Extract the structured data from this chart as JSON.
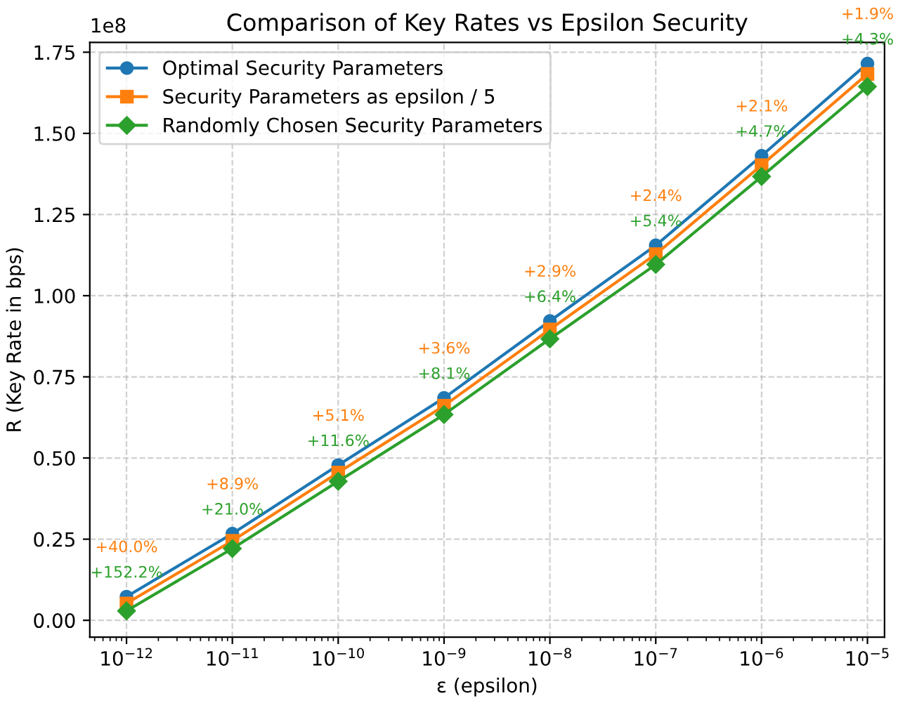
{
  "chart_data": {
    "type": "line",
    "title": "Comparison of Key Rates vs Epsilon Security",
    "xlabel": "ε (epsilon)",
    "ylabel": "R (Key Rate in bps)",
    "log": "x",
    "x": [
      1e-12,
      1e-11,
      1e-10,
      1e-09,
      1e-08,
      1e-07,
      1e-06,
      1e-05
    ],
    "series": [
      {
        "name": "Optimal Security Parameters",
        "color": "#1f77b4",
        "marker": "circle",
        "values": [
          0.073,
          0.267,
          0.478,
          0.685,
          0.922,
          1.155,
          1.431,
          1.715
        ]
      },
      {
        "name": "Security Parameters as epsilon / 5",
        "color": "#ff7f0e",
        "marker": "square",
        "values": [
          0.052,
          0.245,
          0.455,
          0.661,
          0.896,
          1.128,
          1.402,
          1.683
        ]
      },
      {
        "name": "Randomly Chosen Security Parameters",
        "color": "#2ca02c",
        "marker": "diamond",
        "values": [
          0.029,
          0.221,
          0.428,
          0.634,
          0.867,
          1.096,
          1.367,
          1.644
        ]
      }
    ],
    "xlim": [
      4.5e-13,
      1.45e-05
    ],
    "xticks": [
      {
        "value": 1e-12,
        "label": "10$^{−12}$"
      },
      {
        "value": 1e-11,
        "label": "10$^{−11}$"
      },
      {
        "value": 1e-10,
        "label": "10$^{−10}$"
      },
      {
        "value": 1e-09,
        "label": "10$^{−9}$"
      },
      {
        "value": 1e-08,
        "label": "10$^{−8}$"
      },
      {
        "value": 1e-07,
        "label": "10$^{−7}$"
      },
      {
        "value": 1e-06,
        "label": "10$^{−6}$"
      },
      {
        "value": 1e-05,
        "label": "10$^{−5}$"
      }
    ],
    "ylim": [
      -0.052,
      1.78
    ],
    "yticks": [
      {
        "value": 0,
        "label": "0.00"
      },
      {
        "value": 0.25,
        "label": "0.25"
      },
      {
        "value": 0.5,
        "label": "0.50"
      },
      {
        "value": 0.75,
        "label": "0.75"
      },
      {
        "value": 1,
        "label": "1.00"
      },
      {
        "value": 1.25,
        "label": "1.25"
      },
      {
        "value": 1.5,
        "label": "1.50"
      },
      {
        "value": 1.75,
        "label": "1.75"
      }
    ],
    "annotations": [
      "1e8",
      {
        "text": "+40.0%",
        "x": 1e-12,
        "y": 0.073
      },
      {
        "text": "+152.2%",
        "x": 1e-12,
        "y": 0.073
      },
      {
        "text": "+8.9%",
        "x": 1e-11,
        "y": 0.267
      },
      {
        "text": "+21.0%",
        "x": 1e-11,
        "y": 0.267
      },
      {
        "text": "+5.1%",
        "x": 1e-10,
        "y": 0.478
      },
      {
        "text": "+11.6%",
        "x": 1e-10,
        "y": 0.478
      },
      {
        "text": "+3.6%",
        "x": 1e-09,
        "y": 0.685
      },
      {
        "text": "+8.1%",
        "x": 1e-09,
        "y": 0.685
      },
      {
        "text": "+2.9%",
        "x": 1e-08,
        "y": 0.922
      },
      {
        "text": "+6.4%",
        "x": 1e-08,
        "y": 0.922
      },
      {
        "text": "+2.4%",
        "x": 1e-07,
        "y": 1.155
      },
      {
        "text": "+5.4%",
        "x": 1e-07,
        "y": 1.155
      },
      {
        "text": "+2.1%",
        "x": 1e-06,
        "y": 1.431
      },
      {
        "text": "+4.7%",
        "x": 1e-06,
        "y": 1.431
      },
      {
        "text": "+1.9%",
        "x": 1e-05,
        "y": 1.715
      },
      {
        "text": "+4.3%",
        "x": 1e-05,
        "y": 1.715
      }
    ],
    "grid": true,
    "legend": "top left",
    "line_style": "solid"
  }
}
